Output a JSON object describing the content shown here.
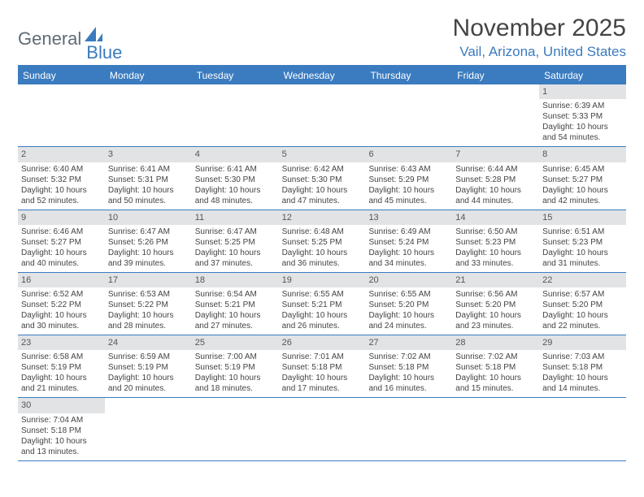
{
  "logo": {
    "text1": "General",
    "text2": "Blue"
  },
  "title": "November 2025",
  "location": "Vail, Arizona, United States",
  "colors": {
    "accent": "#3b7bbf",
    "header_bg": "#3b7bbf",
    "daynum_bg": "#e1e3e5",
    "text": "#444444",
    "logo_gray": "#5f6b75"
  },
  "weekdays": [
    "Sunday",
    "Monday",
    "Tuesday",
    "Wednesday",
    "Thursday",
    "Friday",
    "Saturday"
  ],
  "weeks": [
    [
      null,
      null,
      null,
      null,
      null,
      null,
      {
        "n": "1",
        "sr": "Sunrise: 6:39 AM",
        "ss": "Sunset: 5:33 PM",
        "dl": "Daylight: 10 hours and 54 minutes."
      }
    ],
    [
      {
        "n": "2",
        "sr": "Sunrise: 6:40 AM",
        "ss": "Sunset: 5:32 PM",
        "dl": "Daylight: 10 hours and 52 minutes."
      },
      {
        "n": "3",
        "sr": "Sunrise: 6:41 AM",
        "ss": "Sunset: 5:31 PM",
        "dl": "Daylight: 10 hours and 50 minutes."
      },
      {
        "n": "4",
        "sr": "Sunrise: 6:41 AM",
        "ss": "Sunset: 5:30 PM",
        "dl": "Daylight: 10 hours and 48 minutes."
      },
      {
        "n": "5",
        "sr": "Sunrise: 6:42 AM",
        "ss": "Sunset: 5:30 PM",
        "dl": "Daylight: 10 hours and 47 minutes."
      },
      {
        "n": "6",
        "sr": "Sunrise: 6:43 AM",
        "ss": "Sunset: 5:29 PM",
        "dl": "Daylight: 10 hours and 45 minutes."
      },
      {
        "n": "7",
        "sr": "Sunrise: 6:44 AM",
        "ss": "Sunset: 5:28 PM",
        "dl": "Daylight: 10 hours and 44 minutes."
      },
      {
        "n": "8",
        "sr": "Sunrise: 6:45 AM",
        "ss": "Sunset: 5:27 PM",
        "dl": "Daylight: 10 hours and 42 minutes."
      }
    ],
    [
      {
        "n": "9",
        "sr": "Sunrise: 6:46 AM",
        "ss": "Sunset: 5:27 PM",
        "dl": "Daylight: 10 hours and 40 minutes."
      },
      {
        "n": "10",
        "sr": "Sunrise: 6:47 AM",
        "ss": "Sunset: 5:26 PM",
        "dl": "Daylight: 10 hours and 39 minutes."
      },
      {
        "n": "11",
        "sr": "Sunrise: 6:47 AM",
        "ss": "Sunset: 5:25 PM",
        "dl": "Daylight: 10 hours and 37 minutes."
      },
      {
        "n": "12",
        "sr": "Sunrise: 6:48 AM",
        "ss": "Sunset: 5:25 PM",
        "dl": "Daylight: 10 hours and 36 minutes."
      },
      {
        "n": "13",
        "sr": "Sunrise: 6:49 AM",
        "ss": "Sunset: 5:24 PM",
        "dl": "Daylight: 10 hours and 34 minutes."
      },
      {
        "n": "14",
        "sr": "Sunrise: 6:50 AM",
        "ss": "Sunset: 5:23 PM",
        "dl": "Daylight: 10 hours and 33 minutes."
      },
      {
        "n": "15",
        "sr": "Sunrise: 6:51 AM",
        "ss": "Sunset: 5:23 PM",
        "dl": "Daylight: 10 hours and 31 minutes."
      }
    ],
    [
      {
        "n": "16",
        "sr": "Sunrise: 6:52 AM",
        "ss": "Sunset: 5:22 PM",
        "dl": "Daylight: 10 hours and 30 minutes."
      },
      {
        "n": "17",
        "sr": "Sunrise: 6:53 AM",
        "ss": "Sunset: 5:22 PM",
        "dl": "Daylight: 10 hours and 28 minutes."
      },
      {
        "n": "18",
        "sr": "Sunrise: 6:54 AM",
        "ss": "Sunset: 5:21 PM",
        "dl": "Daylight: 10 hours and 27 minutes."
      },
      {
        "n": "19",
        "sr": "Sunrise: 6:55 AM",
        "ss": "Sunset: 5:21 PM",
        "dl": "Daylight: 10 hours and 26 minutes."
      },
      {
        "n": "20",
        "sr": "Sunrise: 6:55 AM",
        "ss": "Sunset: 5:20 PM",
        "dl": "Daylight: 10 hours and 24 minutes."
      },
      {
        "n": "21",
        "sr": "Sunrise: 6:56 AM",
        "ss": "Sunset: 5:20 PM",
        "dl": "Daylight: 10 hours and 23 minutes."
      },
      {
        "n": "22",
        "sr": "Sunrise: 6:57 AM",
        "ss": "Sunset: 5:20 PM",
        "dl": "Daylight: 10 hours and 22 minutes."
      }
    ],
    [
      {
        "n": "23",
        "sr": "Sunrise: 6:58 AM",
        "ss": "Sunset: 5:19 PM",
        "dl": "Daylight: 10 hours and 21 minutes."
      },
      {
        "n": "24",
        "sr": "Sunrise: 6:59 AM",
        "ss": "Sunset: 5:19 PM",
        "dl": "Daylight: 10 hours and 20 minutes."
      },
      {
        "n": "25",
        "sr": "Sunrise: 7:00 AM",
        "ss": "Sunset: 5:19 PM",
        "dl": "Daylight: 10 hours and 18 minutes."
      },
      {
        "n": "26",
        "sr": "Sunrise: 7:01 AM",
        "ss": "Sunset: 5:18 PM",
        "dl": "Daylight: 10 hours and 17 minutes."
      },
      {
        "n": "27",
        "sr": "Sunrise: 7:02 AM",
        "ss": "Sunset: 5:18 PM",
        "dl": "Daylight: 10 hours and 16 minutes."
      },
      {
        "n": "28",
        "sr": "Sunrise: 7:02 AM",
        "ss": "Sunset: 5:18 PM",
        "dl": "Daylight: 10 hours and 15 minutes."
      },
      {
        "n": "29",
        "sr": "Sunrise: 7:03 AM",
        "ss": "Sunset: 5:18 PM",
        "dl": "Daylight: 10 hours and 14 minutes."
      }
    ],
    [
      {
        "n": "30",
        "sr": "Sunrise: 7:04 AM",
        "ss": "Sunset: 5:18 PM",
        "dl": "Daylight: 10 hours and 13 minutes."
      },
      null,
      null,
      null,
      null,
      null,
      null
    ]
  ]
}
